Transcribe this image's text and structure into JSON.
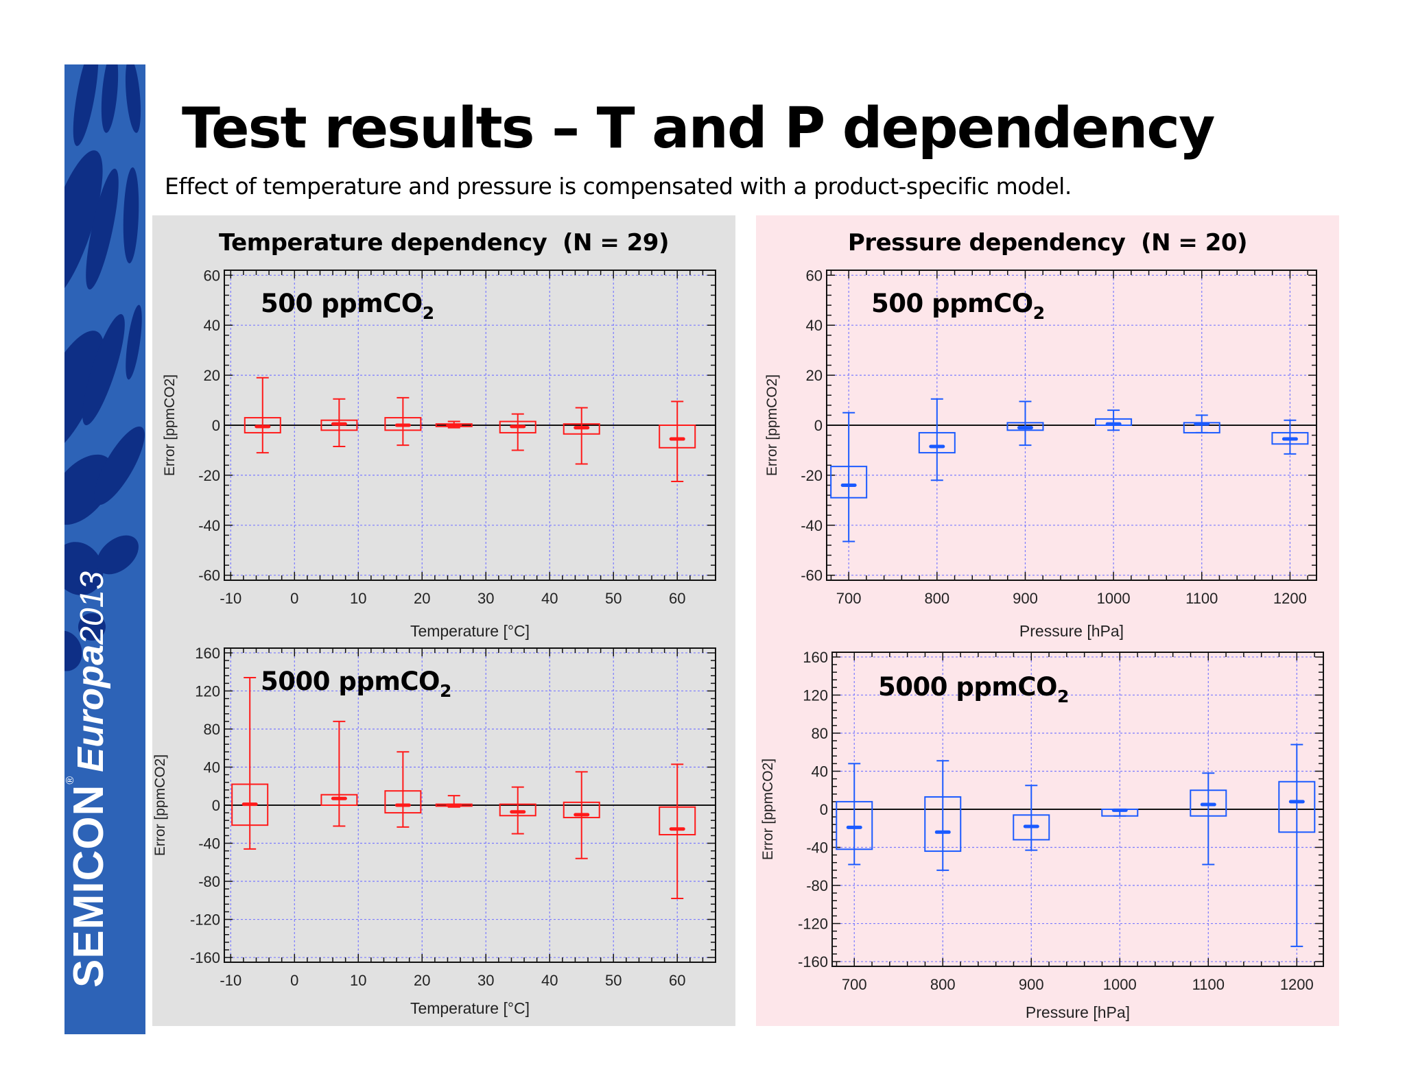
{
  "slide": {
    "title": "Test results – T and P dependency",
    "subtitle": "Effect of temperature and pressure is compensated with a product-specific model."
  },
  "brand": {
    "name": "SEMICON",
    "registered": "®",
    "region": "Europa",
    "year": "2013",
    "colors": {
      "background": "#2d63b7",
      "pattern": "#0e2f86",
      "text": "#ffffff"
    }
  },
  "panels": [
    {
      "title": "Temperature dependency  (N = 29)",
      "background": "#e1e1e1"
    },
    {
      "title": "Pressure dependency  (N = 20)",
      "background": "#fde6ea"
    }
  ],
  "chart_data": [
    {
      "type": "boxplot",
      "panel": "Temperature dependency  (N = 29)",
      "annotation": "500 ppmCO",
      "annotation_sub": "2",
      "xlabel": "Temperature [°C]",
      "ylabel": "Error [ppmCO2]",
      "xlim": [
        -11,
        66
      ],
      "ylim": [
        -62,
        62
      ],
      "xticks": [
        -10,
        0,
        10,
        20,
        30,
        40,
        50,
        60
      ],
      "yticks": [
        -60,
        -40,
        -20,
        0,
        20,
        40,
        60
      ],
      "color": "#ff1a1a",
      "grid": true,
      "boxes": [
        {
          "x": -5,
          "whisker_low": -11,
          "q1": -3,
          "median": -0.5,
          "q3": 3,
          "whisker_high": 19
        },
        {
          "x": 7,
          "whisker_low": -8.5,
          "q1": -2,
          "median": 0.5,
          "q3": 2,
          "whisker_high": 10.5
        },
        {
          "x": 17,
          "whisker_low": -8,
          "q1": -2,
          "median": 0,
          "q3": 3,
          "whisker_high": 11
        },
        {
          "x": 25,
          "whisker_low": -1,
          "q1": -0.5,
          "median": 0,
          "q3": 0.5,
          "whisker_high": 1.5
        },
        {
          "x": 35,
          "whisker_low": -10,
          "q1": -3,
          "median": -0.5,
          "q3": 1.5,
          "whisker_high": 4.5
        },
        {
          "x": 45,
          "whisker_low": -15.5,
          "q1": -3.5,
          "median": -1,
          "q3": 0.5,
          "whisker_high": 7
        },
        {
          "x": 60,
          "whisker_low": -22.5,
          "q1": -9,
          "median": -5.5,
          "q3": 0,
          "whisker_high": 9.5
        }
      ]
    },
    {
      "type": "boxplot",
      "panel": "Pressure dependency  (N = 20)",
      "annotation": "500 ppmCO",
      "annotation_sub": "2",
      "xlabel": "Pressure [hPa]",
      "ylabel": "Error [ppmCO2]",
      "xlim": [
        675,
        1230
      ],
      "ylim": [
        -62,
        62
      ],
      "xticks": [
        700,
        800,
        900,
        1000,
        1100,
        1200
      ],
      "yticks": [
        -60,
        -40,
        -20,
        0,
        20,
        40,
        60
      ],
      "color": "#1a5aff",
      "grid": true,
      "boxes": [
        {
          "x": 700,
          "whisker_low": -46.5,
          "q1": -29,
          "median": -24,
          "q3": -16.5,
          "whisker_high": 5
        },
        {
          "x": 800,
          "whisker_low": -22,
          "q1": -11,
          "median": -8.5,
          "q3": -3,
          "whisker_high": 10.5
        },
        {
          "x": 900,
          "whisker_low": -8,
          "q1": -2,
          "median": -1,
          "q3": 1,
          "whisker_high": 9.5
        },
        {
          "x": 1000,
          "whisker_low": -2,
          "q1": 0,
          "median": 0.5,
          "q3": 2.5,
          "whisker_high": 6
        },
        {
          "x": 1100,
          "whisker_low": -3,
          "q1": -3,
          "median": 0.5,
          "q3": 1,
          "whisker_high": 4
        },
        {
          "x": 1200,
          "whisker_low": -11.5,
          "q1": -7.5,
          "median": -5.5,
          "q3": -3,
          "whisker_high": 2
        }
      ]
    },
    {
      "type": "boxplot",
      "panel": "Temperature dependency  (N = 29)",
      "annotation": "5000 ppmCO",
      "annotation_sub": "2",
      "xlabel": "Temperature [°C]",
      "ylabel": "Error [ppmCO2]",
      "xlim": [
        -11,
        66
      ],
      "ylim": [
        -165,
        165
      ],
      "xticks": [
        -10,
        0,
        10,
        20,
        30,
        40,
        50,
        60
      ],
      "yticks": [
        -160,
        -120,
        -80,
        -40,
        0,
        40,
        80,
        120,
        160
      ],
      "color": "#ff1a1a",
      "grid": true,
      "boxes": [
        {
          "x": -7,
          "whisker_low": -46,
          "q1": -21,
          "median": 1,
          "q3": 22,
          "whisker_high": 134
        },
        {
          "x": 7,
          "whisker_low": -22,
          "q1": 0,
          "median": 7,
          "q3": 11,
          "whisker_high": 88
        },
        {
          "x": 17,
          "whisker_low": -23,
          "q1": -8,
          "median": 0,
          "q3": 15,
          "whisker_high": 56
        },
        {
          "x": 25,
          "whisker_low": -2,
          "q1": -1,
          "median": 0,
          "q3": 1,
          "whisker_high": 10
        },
        {
          "x": 35,
          "whisker_low": -30,
          "q1": -11,
          "median": -7,
          "q3": 1,
          "whisker_high": 19
        },
        {
          "x": 45,
          "whisker_low": -56,
          "q1": -13,
          "median": -10,
          "q3": 3,
          "whisker_high": 35
        },
        {
          "x": 60,
          "whisker_low": -98,
          "q1": -31,
          "median": -25,
          "q3": -2,
          "whisker_high": 43
        }
      ]
    },
    {
      "type": "boxplot",
      "panel": "Pressure dependency  (N = 20)",
      "annotation": "5000 ppmCO",
      "annotation_sub": "2",
      "xlabel": "Pressure [hPa]",
      "ylabel": "Error [ppmCO2]",
      "xlim": [
        675,
        1230
      ],
      "ylim": [
        -165,
        165
      ],
      "xticks": [
        700,
        800,
        900,
        1000,
        1100,
        1200
      ],
      "yticks": [
        -160,
        -120,
        -80,
        -40,
        0,
        40,
        80,
        120,
        160
      ],
      "color": "#1a5aff",
      "grid": true,
      "boxes": [
        {
          "x": 700,
          "whisker_low": -58,
          "q1": -42,
          "median": -19,
          "q3": 8,
          "whisker_high": 48
        },
        {
          "x": 800,
          "whisker_low": -64,
          "q1": -44,
          "median": -24,
          "q3": 13,
          "whisker_high": 51
        },
        {
          "x": 900,
          "whisker_low": -43,
          "q1": -32,
          "median": -18,
          "q3": -6,
          "whisker_high": 25
        },
        {
          "x": 1000,
          "whisker_low": -7,
          "q1": -7,
          "median": -1,
          "q3": 0,
          "whisker_high": 0
        },
        {
          "x": 1100,
          "whisker_low": -58,
          "q1": -7,
          "median": 5,
          "q3": 20,
          "whisker_high": 38
        },
        {
          "x": 1200,
          "whisker_low": -144,
          "q1": -24,
          "median": 8,
          "q3": 29,
          "whisker_high": 68
        }
      ]
    }
  ]
}
